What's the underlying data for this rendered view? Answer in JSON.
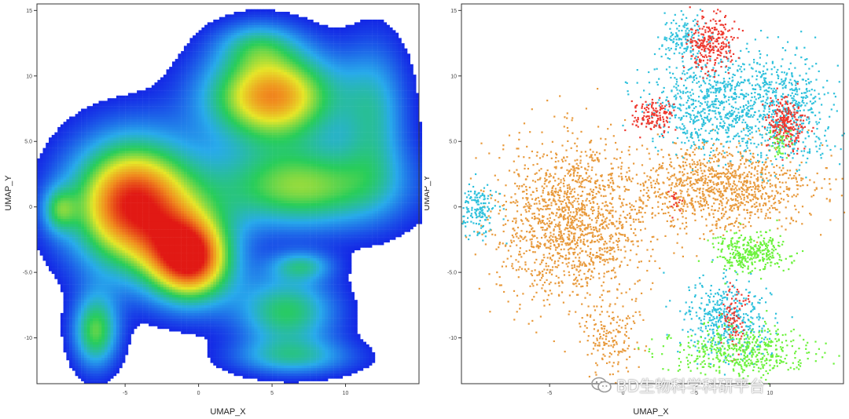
{
  "watermark": {
    "text": "BD生物科学科研平台",
    "icon": "wechat-icon"
  },
  "chart_data": [
    {
      "type": "scatter",
      "title": "",
      "xlabel": "UMAP_X",
      "ylabel": "UMAP_Y",
      "xlim": [
        -11,
        15
      ],
      "ylim": [
        -13.5,
        15.5
      ],
      "x_ticks": [
        -5,
        0,
        5,
        10
      ],
      "x_tick_labels": [
        "-5",
        "0",
        "5",
        "10"
      ],
      "y_ticks": [
        -10,
        -5,
        0,
        5,
        10,
        15
      ],
      "y_tick_labels": [
        "-10",
        "-5.0",
        "0",
        "5.0",
        "10",
        "15"
      ],
      "coloring": "density (blue low → green → yellow → red high)",
      "grid": false,
      "clusters": [
        {
          "cx": -4.5,
          "cy": 0.2,
          "sx": 3.0,
          "sy": 3.5,
          "peak": 0.95
        },
        {
          "cx": -0.5,
          "cy": -4.0,
          "sx": 2.0,
          "sy": 2.3,
          "peak": 0.9
        },
        {
          "cx": 5.0,
          "cy": 8.5,
          "sx": 3.2,
          "sy": 2.5,
          "peak": 0.8
        },
        {
          "cx": 7.0,
          "cy": 1.5,
          "sx": 4.5,
          "sy": 2.3,
          "peak": 0.55
        },
        {
          "cx": 12.0,
          "cy": 7.0,
          "sx": 1.6,
          "sy": 4.0,
          "peak": 0.3
        },
        {
          "cx": 6.0,
          "cy": -8.0,
          "sx": 2.4,
          "sy": 2.0,
          "peak": 0.45
        },
        {
          "cx": 6.5,
          "cy": -11.5,
          "sx": 3.0,
          "sy": 1.0,
          "peak": 0.3
        },
        {
          "cx": 4.0,
          "cy": 12.5,
          "sx": 2.0,
          "sy": 1.3,
          "peak": 0.25
        },
        {
          "cx": -7.0,
          "cy": -9.5,
          "sx": 1.1,
          "sy": 2.0,
          "peak": 0.5
        },
        {
          "cx": -9.5,
          "cy": -0.2,
          "sx": 0.8,
          "sy": 1.2,
          "peak": 0.3
        },
        {
          "cx": 7.0,
          "cy": -4.5,
          "sx": 1.5,
          "sy": 0.8,
          "peak": 0.3
        }
      ]
    },
    {
      "type": "scatter",
      "title": "",
      "xlabel": "UMAP_X",
      "ylabel": "UMAP_Y",
      "xlim": [
        -11,
        15
      ],
      "ylim": [
        -13.5,
        15.5
      ],
      "x_ticks": [
        -5,
        0,
        5,
        10
      ],
      "x_tick_labels": [
        "-5",
        "0",
        "5",
        "10"
      ],
      "y_ticks": [
        -10,
        -5,
        0,
        5,
        10,
        15
      ],
      "y_tick_labels": [
        "-10",
        "-5.0",
        "0",
        "5.0",
        "10",
        "15"
      ],
      "grid": false,
      "series": [
        {
          "color": "#e89a3c",
          "clusters": [
            {
              "cx": -3.5,
              "cy": -1.0,
              "sx": 3.2,
              "sy": 3.8,
              "n": 1500
            },
            {
              "cx": 6.5,
              "cy": 1.5,
              "sx": 4.0,
              "sy": 2.0,
              "n": 1100
            },
            {
              "cx": -1.0,
              "cy": -9.8,
              "sx": 1.2,
              "sy": 2.0,
              "n": 170
            }
          ]
        },
        {
          "color": "#2fc1dc",
          "clusters": [
            {
              "cx": 6.5,
              "cy": 8.0,
              "sx": 2.8,
              "sy": 2.3,
              "n": 850
            },
            {
              "cx": 11.5,
              "cy": 7.5,
              "sx": 1.7,
              "sy": 2.5,
              "n": 420
            },
            {
              "cx": 4.0,
              "cy": 13.0,
              "sx": 1.0,
              "sy": 1.0,
              "n": 140
            },
            {
              "cx": 7.0,
              "cy": -8.5,
              "sx": 1.8,
              "sy": 1.8,
              "n": 420
            },
            {
              "cx": -10.0,
              "cy": -0.2,
              "sx": 0.8,
              "sy": 1.2,
              "n": 160
            }
          ]
        },
        {
          "color": "#ee3a30",
          "clusters": [
            {
              "cx": 6.0,
              "cy": 12.5,
              "sx": 1.0,
              "sy": 1.4,
              "n": 260
            },
            {
              "cx": 2.0,
              "cy": 7.0,
              "sx": 0.9,
              "sy": 0.8,
              "n": 140
            },
            {
              "cx": 11.0,
              "cy": 6.5,
              "sx": 0.8,
              "sy": 1.2,
              "n": 240
            },
            {
              "cx": 7.5,
              "cy": -8.5,
              "sx": 0.5,
              "sy": 1.8,
              "n": 90
            },
            {
              "cx": 3.5,
              "cy": 0.5,
              "sx": 0.3,
              "sy": 0.6,
              "n": 18
            }
          ]
        },
        {
          "color": "#6cf23c",
          "clusters": [
            {
              "cx": 8.5,
              "cy": -3.5,
              "sx": 1.6,
              "sy": 0.9,
              "n": 330
            },
            {
              "cx": 8.0,
              "cy": -11.0,
              "sx": 3.0,
              "sy": 1.2,
              "n": 460
            },
            {
              "cx": 10.5,
              "cy": 4.8,
              "sx": 0.5,
              "sy": 0.7,
              "n": 40
            }
          ]
        }
      ]
    }
  ]
}
